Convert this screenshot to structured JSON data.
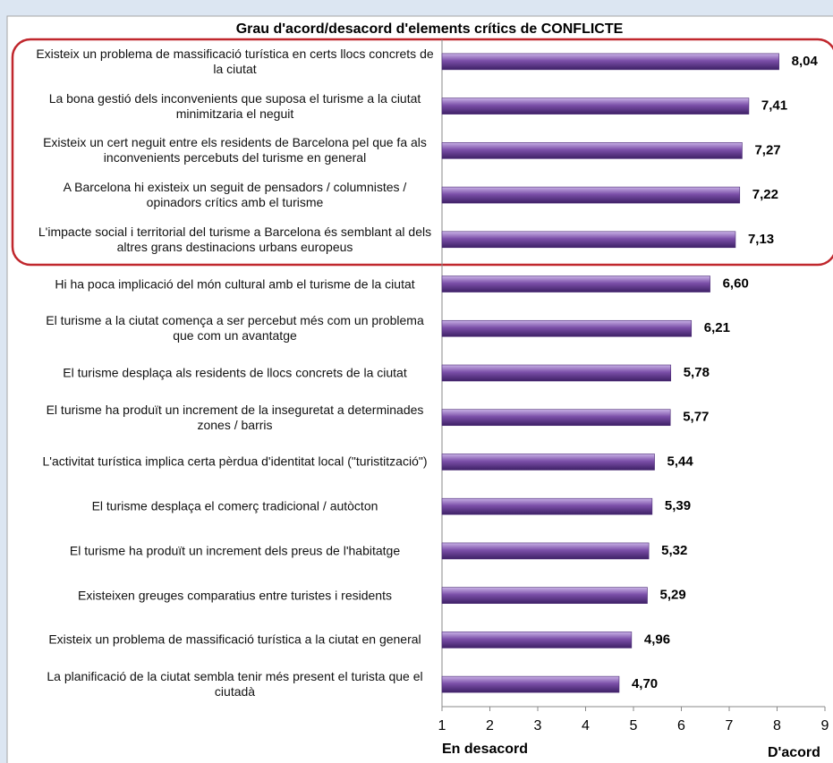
{
  "chart_data": {
    "type": "barh",
    "title": "Grau d'acord/desacord d'elements crítics de CONFLICTE",
    "categories": [
      "Existeix un problema de massificació turística en certs llocs concrets de la ciutat",
      "La bona gestió dels inconvenients que suposa el turisme a la ciutat minimitzaria el neguit",
      "Existeix un cert neguit entre els residents de Barcelona pel que fa als inconvenients percebuts del turisme en general",
      "A Barcelona hi existeix un seguit de pensadors / columnistes / opinadors crítics amb el turisme",
      "L'impacte social i territorial del turisme a Barcelona és semblant al dels altres grans destinacions urbans europeus",
      "Hi ha poca implicació del món cultural amb el turisme de la ciutat",
      "El turisme a la ciutat comença a ser percebut més com un problema que com un avantatge",
      "El turisme desplaça als residents de llocs concrets de la ciutat",
      "El turisme ha produït un increment de la inseguretat a determinades zones / barris",
      "L'activitat turística implica certa pèrdua d'identitat local (\"turistització\")",
      "El turisme desplaça el comerç tradicional / autòcton",
      "El turisme ha produït un increment dels preus de l'habitatge",
      "Existeixen greuges comparatius entre turistes i residents",
      "Existeix un problema de massificació turística a la ciutat en general",
      "La planificació de la ciutat sembla tenir més present el turista que el ciutadà"
    ],
    "values": [
      8.04,
      7.41,
      7.27,
      7.22,
      7.13,
      6.6,
      6.21,
      5.78,
      5.77,
      5.44,
      5.39,
      5.32,
      5.29,
      4.96,
      4.7
    ],
    "value_labels": [
      "8,04",
      "7,41",
      "7,27",
      "7,22",
      "7,13",
      "6,60",
      "6,21",
      "5,78",
      "5,77",
      "5,44",
      "5,39",
      "5,32",
      "5,29",
      "4,96",
      "4,70"
    ],
    "color": "#7b4fa8",
    "xlim": [
      1,
      9
    ],
    "xticks": [
      1,
      2,
      3,
      4,
      5,
      6,
      7,
      8,
      9
    ],
    "xlabel_left": "En desacord",
    "xlabel_right": "D'acord"
  }
}
